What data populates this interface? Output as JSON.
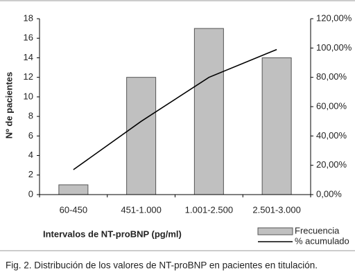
{
  "chart_data": {
    "type": "bar-line",
    "categories": [
      "60-450",
      "451-1.000",
      "1.001-2.500",
      "2.501-3.000"
    ],
    "series": [
      {
        "name": "Frecuencia",
        "color": "#c0c0c0",
        "type": "bar",
        "values": [
          1,
          12,
          17,
          14
        ]
      },
      {
        "name": "% acumulado",
        "color": "#000000",
        "type": "line",
        "axis": "y2",
        "values": [
          17,
          50,
          80,
          99
        ]
      }
    ],
    "ylim": [
      0,
      18
    ],
    "yticks": [
      0,
      2,
      4,
      6,
      8,
      10,
      12,
      14,
      16,
      18
    ],
    "y2lim": [
      0,
      120
    ],
    "y2ticks": [
      {
        "value": 0,
        "label": "0,00%"
      },
      {
        "value": 20,
        "label": "20,00%"
      },
      {
        "value": 40,
        "label": "40,00%"
      },
      {
        "value": 60,
        "label": "60,00%"
      },
      {
        "value": 80,
        "label": "80,00%"
      },
      {
        "value": 100,
        "label": "100,00%"
      },
      {
        "value": 120,
        "label": "120,00%"
      }
    ],
    "y_label": "Nº de pacientes",
    "x_label": "Intervalos de NT-proBNP (pg/ml)",
    "caption": "Fig. 2. Distribución de los valores de NT-proBNP en pacientes en titulación."
  }
}
